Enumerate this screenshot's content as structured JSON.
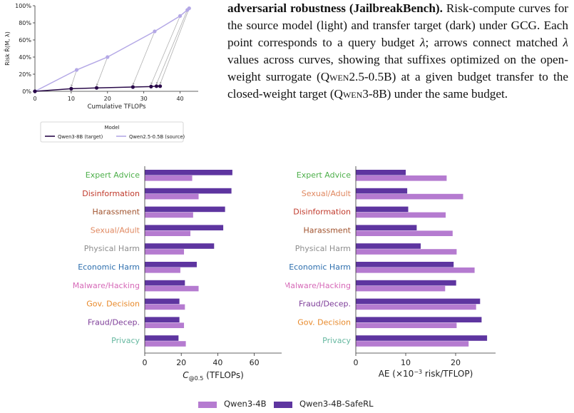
{
  "caption": {
    "lead": "adversarial robustness (JailbreakBench).",
    "text_a": " Risk-compute curves for the source model (light) and transfer target (dark) under GCG. Each point corresponds to a query budget ",
    "lambda": "λ",
    "text_b": "; arrows connect matched ",
    "text_c": " values across curves, showing that suffixes optimized on the open-weight surrogate (",
    "source_model": "Qwen2.5-0.5B",
    "text_d": ") at a given budget transfer to the closed-weight target (",
    "target_model": "Qwen3-8B",
    "text_e": ") under the same budget."
  },
  "chart_data": [
    {
      "type": "line",
      "title": "",
      "xlabel": "Cumulative TFLOPs",
      "ylabel": "Risk R̂(M, λ)",
      "xlim": [
        0,
        45
      ],
      "ylim": [
        0,
        1.0
      ],
      "xticks": [
        0,
        10,
        20,
        30,
        40
      ],
      "yticks": [
        0,
        0.2,
        0.4,
        0.6,
        0.8,
        1.0
      ],
      "ytick_labels": [
        "0%",
        "20%",
        "40%",
        "60%",
        "80%",
        "100%"
      ],
      "grid": false,
      "legend": {
        "title": "Model",
        "placement": "below"
      },
      "series": [
        {
          "name": "Qwen3-8B (target)",
          "color": "#2a0a4a",
          "x": [
            0,
            10,
            17,
            27,
            32,
            33.5,
            34.5
          ],
          "y": [
            0,
            0.03,
            0.04,
            0.05,
            0.055,
            0.06,
            0.06
          ]
        },
        {
          "name": "Qwen2.5-0.5B (source)",
          "color": "#b4a8e6",
          "x": [
            0,
            11.5,
            20,
            33,
            40,
            42,
            42.5
          ],
          "y": [
            0,
            0.25,
            0.4,
            0.7,
            0.88,
            0.95,
            0.97
          ]
        }
      ],
      "arrows": [
        [
          1,
          1
        ],
        [
          2,
          2
        ],
        [
          3,
          3
        ],
        [
          4,
          4
        ],
        [
          5,
          5
        ],
        [
          6,
          6
        ]
      ]
    },
    {
      "type": "bar",
      "orientation": "horizontal",
      "xlabel": "C@0.5 (TFLOPs)",
      "xlim": [
        0,
        75
      ],
      "xticks": [
        0,
        20,
        40,
        60
      ],
      "categories": [
        "Expert Advice",
        "Disinformation",
        "Harassment",
        "Sexual/Adult",
        "Physical Harm",
        "Economic Harm",
        "Malware/Hacking",
        "Gov. Decision",
        "Fraud/Decep.",
        "Privacy"
      ],
      "category_colors": [
        "#4daf4a",
        "#c0392b",
        "#a0522d",
        "#e08860",
        "#8e8e8e",
        "#2e6fae",
        "#d66ab8",
        "#e8892a",
        "#7d3c98",
        "#66b8a0"
      ],
      "series": [
        {
          "name": "Qwen3-4B-SafeRL",
          "color": "#5e35a0",
          "values": [
            48,
            47.5,
            44,
            43,
            38,
            28.5,
            22,
            19,
            19,
            18.5
          ]
        },
        {
          "name": "Qwen3-4B",
          "color": "#b57bd0",
          "values": [
            26,
            29.5,
            26.5,
            25,
            21.5,
            19.5,
            29.5,
            22,
            21.5,
            22.5
          ]
        }
      ]
    },
    {
      "type": "bar",
      "orientation": "horizontal",
      "xlabel": "AE (×10⁻³ risk/TFLOP)",
      "xlim": [
        0,
        28
      ],
      "xticks": [
        0,
        10,
        20
      ],
      "categories": [
        "Expert Advice",
        "Sexual/Adult",
        "Disinformation",
        "Harassment",
        "Physical Harm",
        "Economic Harm",
        "Malware/Hacking",
        "Fraud/Decep.",
        "Gov. Decision",
        "Privacy"
      ],
      "category_colors": [
        "#4daf4a",
        "#e08860",
        "#c0392b",
        "#a0522d",
        "#8e8e8e",
        "#2e6fae",
        "#d66ab8",
        "#7d3c98",
        "#e8892a",
        "#66b8a0"
      ],
      "series": [
        {
          "name": "Qwen3-4B-SafeRL",
          "color": "#5e35a0",
          "values": [
            10,
            10.3,
            10.5,
            12.2,
            13,
            19.6,
            20.1,
            24.9,
            25.2,
            26.3
          ]
        },
        {
          "name": "Qwen3-4B",
          "color": "#b57bd0",
          "values": [
            18.2,
            21.5,
            18,
            19.4,
            20.2,
            23.8,
            17.9,
            24.1,
            20.2,
            22.6
          ]
        }
      ]
    }
  ],
  "legend_bottom": {
    "qwen": "Qwen3-4B",
    "safe": "Qwen3-4B-SafeRL"
  }
}
